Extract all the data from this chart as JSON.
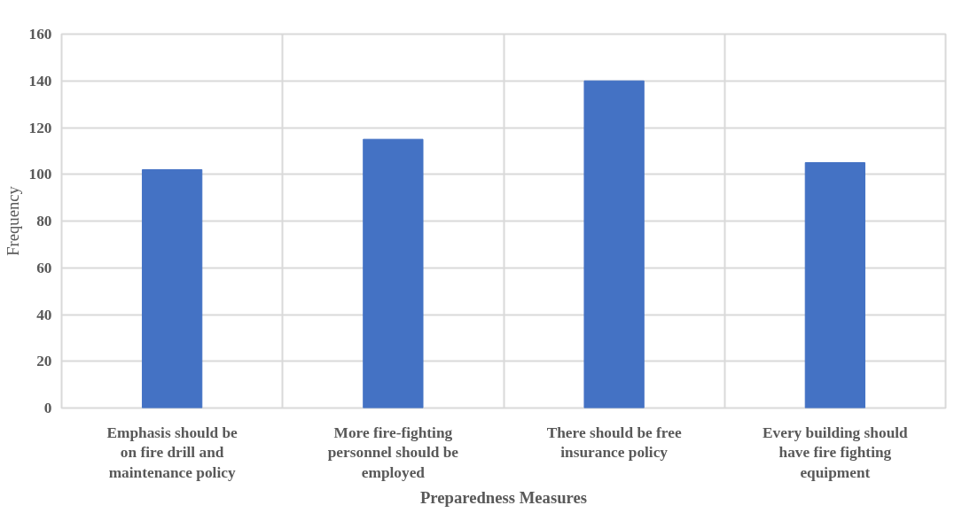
{
  "chart_data": {
    "type": "bar",
    "xlabel": "Preparedness Measures",
    "ylabel": "Frequency",
    "categories": [
      "Emphasis should be\non fire drill and\nmaintenance policy",
      "More fire-fighting\npersonnel should be\nemployed",
      "There should be free\ninsurance policy",
      "Every building should\nhave fire fighting\nequipment"
    ],
    "values": [
      102,
      115,
      140,
      105
    ],
    "color": "#4472c4",
    "ylim": [
      0,
      160
    ],
    "yticks": [
      0,
      20,
      40,
      60,
      80,
      100,
      120,
      140,
      160
    ],
    "grid": true
  }
}
